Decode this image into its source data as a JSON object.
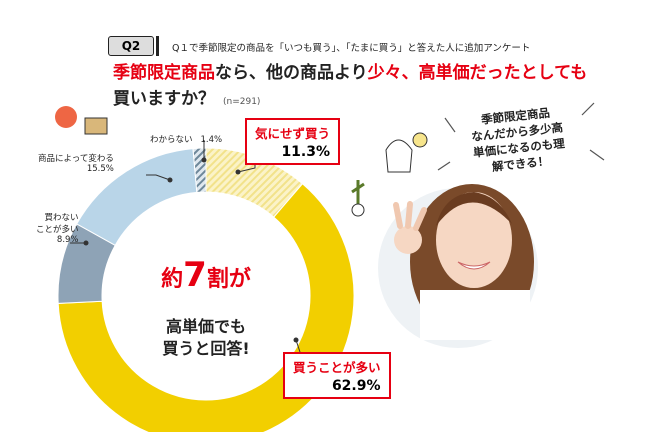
{
  "header": {
    "badge": "Q2",
    "subtitle": "Q１で季節限定の商品を「いつも買う」、「たまに買う」と答えた人に追加アンケート",
    "title": [
      [
        {
          "text": "季節限定商品",
          "color": "#e60012"
        },
        {
          "text": "なら、他の商品より",
          "color": "#222222"
        },
        {
          "text": "少々、高単価だったとしても",
          "color": "#e60012"
        }
      ],
      [
        {
          "text": "買いますか？",
          "color": "#222222"
        }
      ]
    ],
    "sample": "(n=291)"
  },
  "chart_data": {
    "type": "donut",
    "categories": [
      "気にせず買う",
      "買うことが多い",
      "買わない\nことが多い",
      "商品によって変わる",
      "わからない"
    ],
    "values": [
      11.3,
      62.9,
      8.9,
      15.5,
      1.4
    ],
    "value_labels": [
      "11.3%",
      "62.9%",
      "8.9%",
      "15.5%",
      "1.4%"
    ],
    "colors": [
      "#f2e28a",
      "#f2cf00",
      "#8ea3b6",
      "#b9d5e8",
      "#6d8799"
    ],
    "hatched": [
      true,
      false,
      false,
      false,
      true
    ],
    "center": {
      "lead": "約",
      "number": 7,
      "unit": "割が",
      "body": "高単価でも\n買うと回答!"
    }
  },
  "bubble": "季節限定商品\nなんだから多少高\n単価になるのも理\n解できる！"
}
